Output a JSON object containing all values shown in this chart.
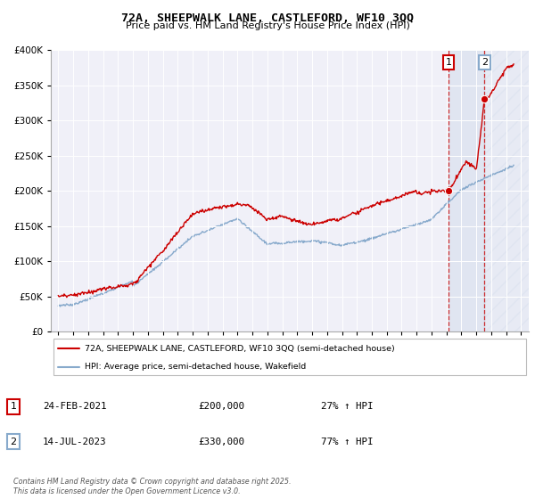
{
  "title": "72A, SHEEPWALK LANE, CASTLEFORD, WF10 3QQ",
  "subtitle": "Price paid vs. HM Land Registry's House Price Index (HPI)",
  "legend_line1": "72A, SHEEPWALK LANE, CASTLEFORD, WF10 3QQ (semi-detached house)",
  "legend_line2": "HPI: Average price, semi-detached house, Wakefield",
  "annotation1_date": "24-FEB-2021",
  "annotation1_price": "£200,000",
  "annotation1_hpi": "27% ↑ HPI",
  "annotation1_year": 2021.15,
  "annotation1_value": 200000,
  "annotation2_date": "14-JUL-2023",
  "annotation2_price": "£330,000",
  "annotation2_hpi": "77% ↑ HPI",
  "annotation2_year": 2023.54,
  "annotation2_value": 330000,
  "red_color": "#cc0000",
  "blue_color": "#88aacc",
  "dashed_color": "#cc0000",
  "ylim_min": 0,
  "ylim_max": 400000,
  "xlim_min": 1994.5,
  "xlim_max": 2026.5,
  "footer": "Contains HM Land Registry data © Crown copyright and database right 2025.\nThis data is licensed under the Open Government Licence v3.0.",
  "background_color": "#ffffff",
  "plot_bg_color": "#f0f0f8"
}
